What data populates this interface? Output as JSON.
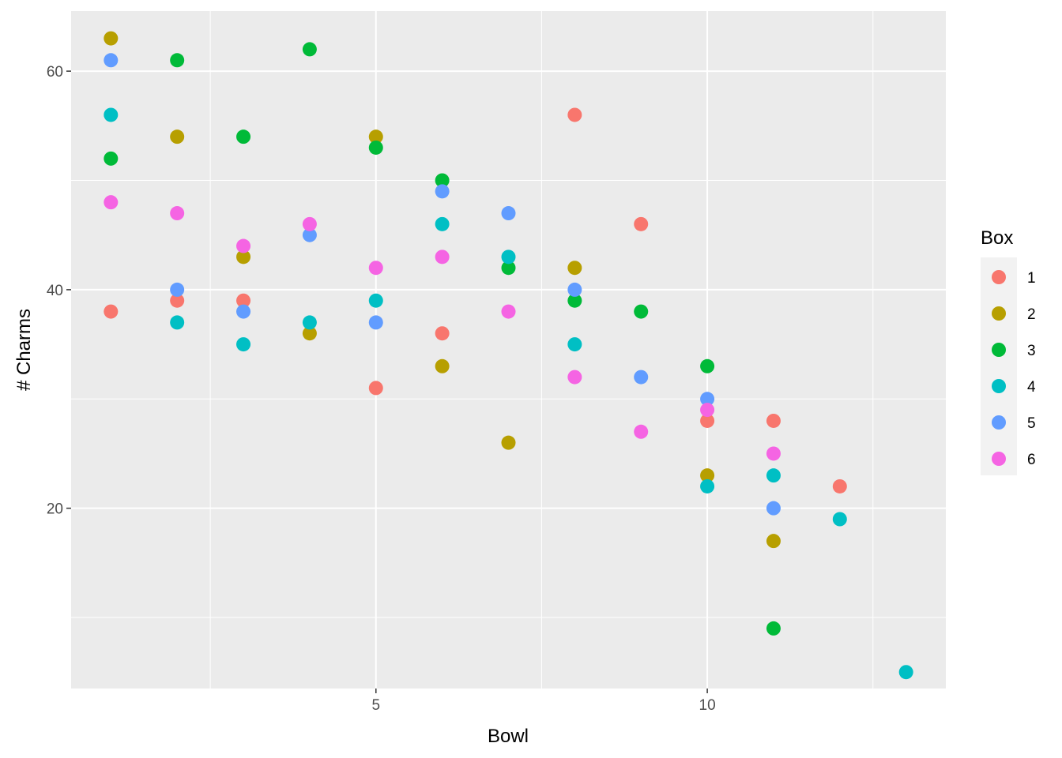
{
  "chart_data": {
    "type": "scatter",
    "title": "",
    "xlabel": "Bowl",
    "ylabel": "# Charms",
    "xlim": [
      0.4,
      13.6
    ],
    "ylim": [
      3.5,
      65.5
    ],
    "x_ticks": [
      5,
      10
    ],
    "y_ticks": [
      20,
      40,
      60
    ],
    "x_minor": [
      2.5,
      7.5,
      12.5
    ],
    "y_minor": [
      10,
      30,
      50
    ],
    "grid": true,
    "legend": {
      "title": "Box",
      "position": "right"
    },
    "series": [
      {
        "name": "1",
        "color": "#F8766D",
        "points": [
          [
            1,
            38
          ],
          [
            2,
            39
          ],
          [
            3,
            39
          ],
          [
            5,
            31
          ],
          [
            6,
            36
          ],
          [
            8,
            56
          ],
          [
            9,
            46
          ],
          [
            10,
            28
          ],
          [
            11,
            28
          ],
          [
            12,
            22
          ]
        ]
      },
      {
        "name": "2",
        "color": "#B79F00",
        "points": [
          [
            1,
            63
          ],
          [
            2,
            54
          ],
          [
            3,
            43
          ],
          [
            4,
            36
          ],
          [
            5,
            54
          ],
          [
            6,
            33
          ],
          [
            7,
            26
          ],
          [
            8,
            42
          ],
          [
            10,
            23
          ],
          [
            11,
            17
          ]
        ]
      },
      {
        "name": "3",
        "color": "#00BA38",
        "points": [
          [
            1,
            52
          ],
          [
            2,
            61
          ],
          [
            3,
            54
          ],
          [
            4,
            62
          ],
          [
            5,
            53
          ],
          [
            6,
            50
          ],
          [
            7,
            42
          ],
          [
            8,
            39
          ],
          [
            9,
            38
          ],
          [
            10,
            33
          ],
          [
            11,
            9
          ]
        ]
      },
      {
        "name": "4",
        "color": "#00BFC4",
        "points": [
          [
            1,
            56
          ],
          [
            2,
            37
          ],
          [
            3,
            35
          ],
          [
            4,
            37
          ],
          [
            5,
            39
          ],
          [
            6,
            46
          ],
          [
            7,
            43
          ],
          [
            8,
            35
          ],
          [
            10,
            22
          ],
          [
            11,
            23
          ],
          [
            12,
            19
          ],
          [
            13,
            5
          ]
        ]
      },
      {
        "name": "5",
        "color": "#619CFF",
        "points": [
          [
            1,
            61
          ],
          [
            2,
            40
          ],
          [
            3,
            38
          ],
          [
            4,
            45
          ],
          [
            5,
            37
          ],
          [
            6,
            49
          ],
          [
            7,
            47
          ],
          [
            8,
            40
          ],
          [
            9,
            32
          ],
          [
            10,
            30
          ],
          [
            11,
            20
          ]
        ]
      },
      {
        "name": "6",
        "color": "#F564E3",
        "points": [
          [
            1,
            48
          ],
          [
            2,
            47
          ],
          [
            3,
            44
          ],
          [
            4,
            46
          ],
          [
            5,
            42
          ],
          [
            6,
            43
          ],
          [
            7,
            38
          ],
          [
            8,
            32
          ],
          [
            9,
            27
          ],
          [
            10,
            29
          ],
          [
            11,
            25
          ]
        ]
      }
    ]
  }
}
